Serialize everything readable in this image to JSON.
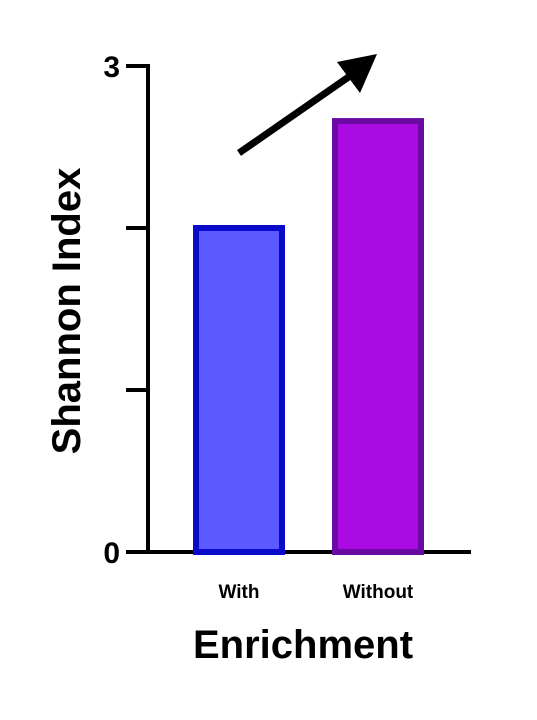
{
  "chart_data": {
    "type": "bar",
    "categories": [
      "With",
      "Without"
    ],
    "values": [
      2.0,
      2.66
    ],
    "xlabel": "Enrichment",
    "ylabel": "Shannon Index",
    "ylim": [
      0,
      3
    ],
    "yticks": [
      0,
      1,
      2,
      3
    ],
    "ytick_labels": [
      "0",
      "",
      "",
      "3"
    ],
    "bar_colors": [
      {
        "fill": "#5a5aff",
        "stroke": "#0a0acb"
      },
      {
        "fill": "#ab0be3",
        "stroke": "#6b0aa3"
      }
    ],
    "annotations": [
      {
        "type": "arrow",
        "direction": "up-right"
      }
    ],
    "grid": false,
    "legend": "none"
  }
}
